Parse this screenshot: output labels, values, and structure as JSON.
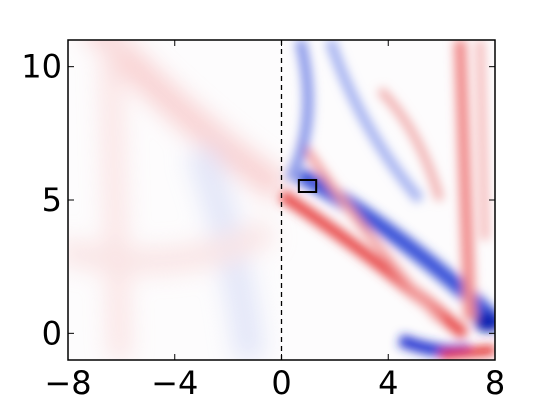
{
  "chart_data": {
    "type": "heatmap",
    "xlim": [
      -8,
      8
    ],
    "ylim": [
      -1,
      11
    ],
    "xticks": [
      {
        "value": -8,
        "label": "−8"
      },
      {
        "value": -4,
        "label": "−4"
      },
      0,
      4,
      8
    ],
    "yticks": [
      0,
      5,
      10
    ],
    "vline": 0,
    "box": {
      "x": [
        0.65,
        1.3
      ],
      "y": [
        5.3,
        5.75
      ]
    }
  }
}
